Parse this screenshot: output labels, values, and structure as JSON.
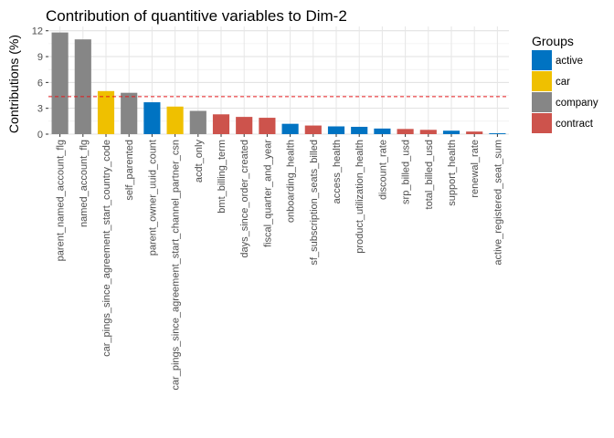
{
  "chart_data": {
    "type": "bar",
    "title": "Contribution of quantitive variables to Dim-2",
    "xlabel": "",
    "ylabel": "Contributions (%)",
    "ylim": [
      0,
      12.5
    ],
    "yticks": [
      "0",
      "3",
      "6",
      "9",
      "12"
    ],
    "ytick_values": [
      0,
      3,
      6,
      9,
      12
    ],
    "reference_line": 4.35,
    "grid": true,
    "legend_position": "right",
    "legend_title": "Groups",
    "groups": [
      {
        "name": "active",
        "color": "#0073C2"
      },
      {
        "name": "car",
        "color": "#EFC000"
      },
      {
        "name": "company",
        "color": "#868686"
      },
      {
        "name": "contract",
        "color": "#CD534C"
      }
    ],
    "categories": [
      "parent_named_account_flg",
      "named_account_flg",
      "car_pings_since_agreement_start_country_code",
      "self_parented",
      "parent_owner_uuid_count",
      "car_pings_since_agreement_start_channel_partner_csn",
      "acdt_only",
      "bmt_billing_term",
      "days_since_order_created",
      "fiscal_quarter_and_year",
      "onboarding_health",
      "sf_subscription_seats_billed",
      "access_health",
      "product_utilization_health",
      "discount_rate",
      "srp_billed_usd",
      "total_billed_usd",
      "support_health",
      "renewal_rate",
      "active_registered_seat_sum"
    ],
    "values": [
      11.8,
      11.0,
      5.0,
      4.8,
      3.7,
      3.2,
      2.7,
      2.3,
      2.0,
      1.9,
      1.2,
      1.0,
      0.9,
      0.85,
      0.65,
      0.6,
      0.5,
      0.4,
      0.3,
      0.1
    ],
    "bar_groups": [
      "company",
      "company",
      "car",
      "company",
      "active",
      "car",
      "company",
      "contract",
      "contract",
      "contract",
      "active",
      "contract",
      "active",
      "active",
      "active",
      "contract",
      "contract",
      "active",
      "contract",
      "active"
    ]
  }
}
